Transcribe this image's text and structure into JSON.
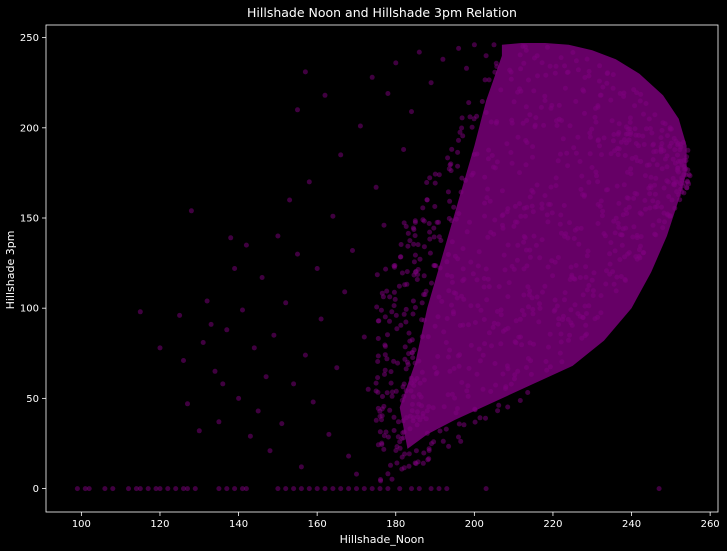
{
  "chart_data": {
    "type": "scatter",
    "title": "Hillshade Noon and Hillshade 3pm Relation",
    "xlabel": "Hillshade_Noon",
    "ylabel": "Hillshade 3pm",
    "xlim": [
      91,
      262
    ],
    "ylim": [
      -13,
      257
    ],
    "xticks": [
      100,
      120,
      140,
      160,
      180,
      200,
      220,
      240,
      260
    ],
    "yticks": [
      0,
      50,
      100,
      150,
      200,
      250
    ],
    "grid": false,
    "legend": "none",
    "marker_color": "#800080",
    "marker_alpha": 0.5,
    "background": "#000000",
    "axis_color": "#ffffff",
    "dense_region": {
      "description_free_boundary": true,
      "upper_edge_x": [
        207,
        212,
        218,
        224,
        230,
        236,
        242,
        248,
        252,
        254
      ],
      "upper_edge_y": [
        246,
        247,
        247,
        246,
        243,
        238,
        230,
        218,
        205,
        190
      ],
      "right_edge_y": [
        190,
        180,
        170,
        160,
        150
      ],
      "right_edge_x": [
        254,
        254,
        253,
        252,
        251
      ]
    },
    "points": [
      [
        99,
        0
      ],
      [
        101,
        0
      ],
      [
        102,
        0
      ],
      [
        106,
        0
      ],
      [
        108,
        0
      ],
      [
        112,
        0
      ],
      [
        114,
        0
      ],
      [
        115,
        0
      ],
      [
        117,
        0
      ],
      [
        119,
        0
      ],
      [
        120,
        0
      ],
      [
        122,
        0
      ],
      [
        124,
        0
      ],
      [
        126,
        0
      ],
      [
        127,
        0
      ],
      [
        129,
        0
      ],
      [
        135,
        0
      ],
      [
        137,
        0
      ],
      [
        139,
        0
      ],
      [
        141,
        0
      ],
      [
        142,
        0
      ],
      [
        150,
        0
      ],
      [
        152,
        0
      ],
      [
        154,
        0
      ],
      [
        156,
        0
      ],
      [
        158,
        0
      ],
      [
        160,
        0
      ],
      [
        162,
        0
      ],
      [
        164,
        0
      ],
      [
        166,
        0
      ],
      [
        168,
        0
      ],
      [
        170,
        0
      ],
      [
        172,
        0
      ],
      [
        174,
        0
      ],
      [
        176,
        0
      ],
      [
        178,
        0
      ],
      [
        181,
        0
      ],
      [
        184,
        0
      ],
      [
        186,
        0
      ],
      [
        189,
        0
      ],
      [
        191,
        0
      ],
      [
        193,
        0
      ],
      [
        203,
        0
      ],
      [
        247,
        0
      ],
      [
        115,
        98
      ],
      [
        120,
        78
      ],
      [
        125,
        96
      ],
      [
        126,
        71
      ],
      [
        127,
        47
      ],
      [
        128,
        154
      ],
      [
        130,
        32
      ],
      [
        131,
        81
      ],
      [
        132,
        104
      ],
      [
        133,
        91
      ],
      [
        134,
        65
      ],
      [
        135,
        37
      ],
      [
        136,
        58
      ],
      [
        137,
        88
      ],
      [
        138,
        139
      ],
      [
        139,
        122
      ],
      [
        140,
        50
      ],
      [
        141,
        99
      ],
      [
        142,
        135
      ],
      [
        143,
        29
      ],
      [
        144,
        78
      ],
      [
        145,
        43
      ],
      [
        146,
        117
      ],
      [
        147,
        62
      ],
      [
        148,
        21
      ],
      [
        149,
        85
      ],
      [
        150,
        140
      ],
      [
        151,
        36
      ],
      [
        152,
        103
      ],
      [
        153,
        160
      ],
      [
        154,
        58
      ],
      [
        155,
        210
      ],
      [
        155,
        130
      ],
      [
        156,
        12
      ],
      [
        157,
        231
      ],
      [
        157,
        74
      ],
      [
        158,
        170
      ],
      [
        159,
        48
      ],
      [
        160,
        122
      ],
      [
        161,
        94
      ],
      [
        162,
        218
      ],
      [
        163,
        30
      ],
      [
        164,
        151
      ],
      [
        165,
        67
      ],
      [
        166,
        185
      ],
      [
        167,
        109
      ],
      [
        168,
        18
      ],
      [
        169,
        132
      ],
      [
        170,
        8
      ],
      [
        171,
        201
      ],
      [
        172,
        84
      ],
      [
        173,
        55
      ],
      [
        174,
        228
      ],
      [
        175,
        167
      ],
      [
        176,
        40
      ],
      [
        177,
        146
      ],
      [
        178,
        219
      ],
      [
        179,
        98
      ],
      [
        180,
        236
      ],
      [
        181,
        26
      ],
      [
        182,
        188
      ],
      [
        183,
        70
      ],
      [
        184,
        209
      ],
      [
        185,
        120
      ],
      [
        186,
        242
      ],
      [
        187,
        14
      ],
      [
        188,
        160
      ],
      [
        189,
        225
      ],
      [
        190,
        90
      ],
      [
        192,
        238
      ],
      [
        194,
        180
      ],
      [
        196,
        244
      ],
      [
        198,
        233
      ],
      [
        200,
        246
      ],
      [
        203,
        240
      ],
      [
        205,
        246
      ],
      [
        209,
        232
      ],
      [
        213,
        245
      ],
      [
        216,
        240
      ]
    ]
  }
}
